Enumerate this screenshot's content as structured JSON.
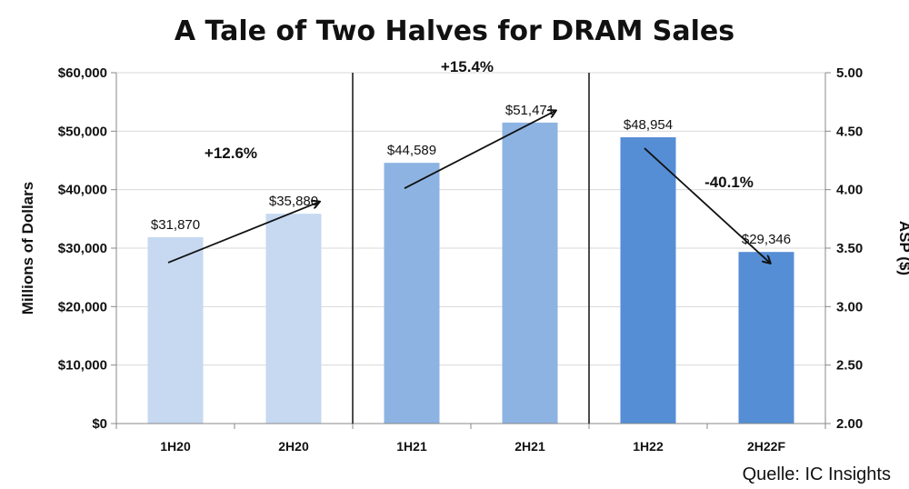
{
  "chart_data": {
    "type": "bar",
    "title": "A Tale of Two Halves for DRAM Sales",
    "categories": [
      "1H20",
      "2H20",
      "1H21",
      "2H21",
      "1H22",
      "2H22F"
    ],
    "values": [
      31870,
      35880,
      44589,
      51471,
      48954,
      29346
    ],
    "value_labels": [
      "$31,870",
      "$35,880",
      "$44,589",
      "$51,471",
      "$48,954",
      "$29,346"
    ],
    "colors": [
      "#c6d9f1",
      "#c6d9f1",
      "#8db3e2",
      "#8db3e2",
      "#558ed5",
      "#558ed5"
    ],
    "ylabel": "Millions of Dollars",
    "ylim": [
      0,
      60000
    ],
    "y_ticks": [
      "$0",
      "$10,000",
      "$20,000",
      "$30,000",
      "$40,000",
      "$50,000",
      "$60,000"
    ],
    "y2label": "ASP ($)",
    "y2lim": [
      2.0,
      5.0
    ],
    "y2_ticks": [
      "2.00",
      "2.50",
      "3.00",
      "3.50",
      "4.00",
      "4.50",
      "5.00"
    ],
    "annotations": [
      {
        "text": "+12.6%",
        "from_category": "1H20",
        "to_category": "2H20"
      },
      {
        "text": "+15.4%",
        "from_category": "1H21",
        "to_category": "2H21"
      },
      {
        "text": "-40.1%",
        "from_category": "1H22",
        "to_category": "2H22F"
      }
    ],
    "grid": true
  },
  "source": "Quelle: IC Insights"
}
